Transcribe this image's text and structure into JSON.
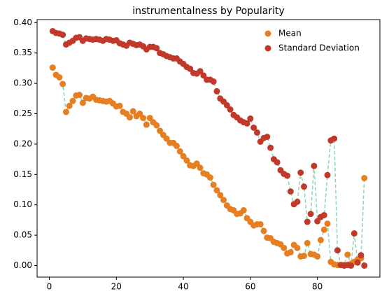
{
  "chart_data": {
    "type": "scatter",
    "title": "instrumentalness by Popularity",
    "x": [
      1,
      2,
      3,
      4,
      5,
      6,
      7,
      8,
      9,
      10,
      11,
      12,
      13,
      14,
      15,
      16,
      17,
      18,
      19,
      20,
      21,
      22,
      23,
      24,
      25,
      26,
      27,
      28,
      29,
      30,
      31,
      32,
      33,
      34,
      35,
      36,
      37,
      38,
      39,
      40,
      41,
      42,
      43,
      44,
      45,
      46,
      47,
      48,
      49,
      50,
      51,
      52,
      53,
      54,
      55,
      56,
      57,
      58,
      59,
      60,
      61,
      62,
      63,
      64,
      65,
      66,
      67,
      68,
      69,
      70,
      71,
      72,
      73,
      74,
      75,
      76,
      77,
      78,
      79,
      80,
      81,
      82,
      83,
      84,
      85,
      86,
      87,
      88,
      89,
      90,
      91,
      92,
      93,
      94
    ],
    "series": [
      {
        "name": "Mean",
        "color": "#e67e22",
        "values": [
          0.326,
          0.314,
          0.31,
          0.299,
          0.253,
          0.263,
          0.271,
          0.28,
          0.281,
          0.268,
          0.276,
          0.275,
          0.278,
          0.273,
          0.272,
          0.271,
          0.27,
          0.271,
          0.267,
          0.262,
          0.263,
          0.253,
          0.25,
          0.244,
          0.254,
          0.246,
          0.25,
          0.243,
          0.232,
          0.243,
          0.236,
          0.231,
          0.222,
          0.215,
          0.209,
          0.202,
          0.202,
          0.197,
          0.188,
          0.18,
          0.173,
          0.165,
          0.164,
          0.168,
          0.161,
          0.152,
          0.15,
          0.145,
          0.133,
          0.124,
          0.116,
          0.108,
          0.099,
          0.093,
          0.091,
          0.085,
          0.086,
          0.091,
          0.078,
          0.072,
          0.066,
          0.068,
          0.068,
          0.057,
          0.046,
          0.045,
          0.039,
          0.037,
          0.035,
          0.029,
          0.02,
          0.022,
          0.034,
          0.029,
          0.015,
          0.016,
          0.037,
          0.019,
          0.018,
          0.015,
          0.042,
          0.059,
          0.069,
          0.006,
          0.002,
          0.001,
          0.001,
          0.001,
          0.018,
          0.003,
          0.006,
          0.01,
          0.012,
          0.144
        ]
      },
      {
        "name": "Standard Deviation",
        "color": "#c0392b",
        "values": [
          0.386,
          0.383,
          0.382,
          0.38,
          0.364,
          0.367,
          0.37,
          0.375,
          0.376,
          0.37,
          0.374,
          0.373,
          0.372,
          0.373,
          0.372,
          0.37,
          0.373,
          0.372,
          0.37,
          0.371,
          0.366,
          0.364,
          0.362,
          0.367,
          0.365,
          0.363,
          0.364,
          0.361,
          0.356,
          0.36,
          0.36,
          0.358,
          0.35,
          0.348,
          0.345,
          0.343,
          0.341,
          0.341,
          0.336,
          0.332,
          0.327,
          0.324,
          0.317,
          0.316,
          0.32,
          0.313,
          0.306,
          0.306,
          0.303,
          0.287,
          0.275,
          0.27,
          0.264,
          0.257,
          0.248,
          0.244,
          0.239,
          0.236,
          0.234,
          0.242,
          0.227,
          0.219,
          0.204,
          0.21,
          0.212,
          0.194,
          0.175,
          0.17,
          0.157,
          0.151,
          0.148,
          0.122,
          0.101,
          0.105,
          0.153,
          0.13,
          0.072,
          0.085,
          0.164,
          0.073,
          0.08,
          0.083,
          0.149,
          0.206,
          0.209,
          0.025,
          0.001,
          0.0,
          0.001,
          0.0,
          0.053,
          0.005,
          0.017,
          0.0
        ]
      }
    ],
    "line_color": "#8fd3b5",
    "xlim": [
      -3.65,
      98.65
    ],
    "xticks": [
      0,
      20,
      40,
      60,
      80
    ],
    "ylim": [
      -0.019,
      0.405
    ],
    "yticks": [
      {
        "value": 0,
        "label": "0.00"
      },
      {
        "value": 0.05,
        "label": "0.05"
      },
      {
        "value": 0.1,
        "label": "0.10"
      },
      {
        "value": 0.15,
        "label": "0.15"
      },
      {
        "value": 0.2,
        "label": "0.20"
      },
      {
        "value": 0.25,
        "label": "0.25"
      },
      {
        "value": 0.3,
        "label": "0.30"
      },
      {
        "value": 0.35,
        "label": "0.35"
      },
      {
        "value": 0.4,
        "label": "0.40"
      }
    ],
    "legend": "upper right"
  }
}
